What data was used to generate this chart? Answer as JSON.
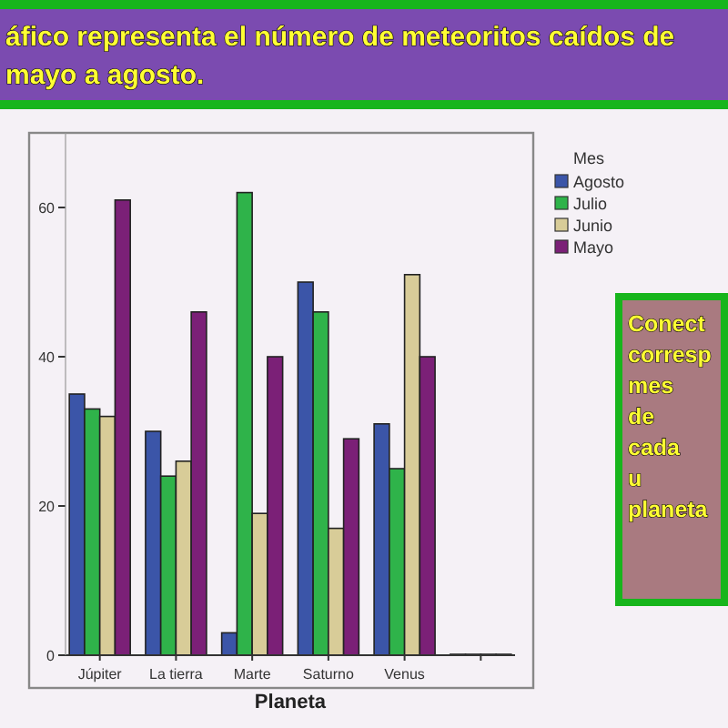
{
  "chart_data": {
    "type": "bar",
    "title": "áfico representa el número de meteoritos caídos de mayo a agosto.",
    "annotations": [
      "Conect corresp mes de cada u planeta"
    ],
    "xlabel": "Planeta",
    "legend_title": "Mes",
    "legend": "right",
    "categories": [
      "Júpiter",
      "La tierra",
      "Marte",
      "Saturno",
      "Venus",
      null
    ],
    "series": [
      {
        "name": "Agosto",
        "color": "#3b55a8",
        "values": [
          35,
          30,
          3,
          50,
          31,
          0
        ]
      },
      {
        "name": "Julio",
        "color": "#2fb34a",
        "values": [
          33,
          24,
          62,
          46,
          25,
          0
        ]
      },
      {
        "name": "Junio",
        "color": "#d8cc98",
        "values": [
          32,
          26,
          19,
          17,
          51,
          0
        ]
      },
      {
        "name": "Mayo",
        "color": "#7b2077",
        "values": [
          61,
          46,
          40,
          29,
          40,
          0
        ]
      }
    ],
    "ylim": [
      0,
      70
    ],
    "yticks": [
      0,
      20,
      40,
      60
    ]
  }
}
